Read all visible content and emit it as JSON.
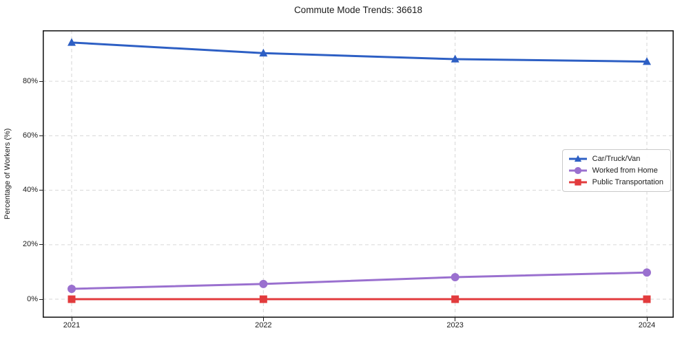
{
  "chart_data": {
    "type": "line",
    "title": "Commute Mode Trends: 36618",
    "xlabel": "",
    "ylabel": "Percentage of Workers (%)",
    "x": [
      "2021",
      "2022",
      "2023",
      "2024"
    ],
    "series": [
      {
        "name": "Car/Truck/Van",
        "color": "#2d5fc4",
        "marker": "triangle",
        "values": [
          94.2,
          90.3,
          88.1,
          87.2
        ]
      },
      {
        "name": "Worked from Home",
        "color": "#9a70cf",
        "marker": "circle",
        "values": [
          3.8,
          5.6,
          8.1,
          9.8
        ]
      },
      {
        "name": "Public Transportation",
        "color": "#e23b3d",
        "marker": "square",
        "values": [
          0.0,
          0.0,
          0.0,
          0.0
        ]
      }
    ],
    "yticks": [
      0,
      20,
      40,
      60,
      80
    ],
    "ytick_labels": [
      "0%",
      "20%",
      "40%",
      "60%",
      "80%"
    ],
    "ylim": [
      -6.8,
      98.7
    ],
    "grid": "dashed",
    "grid_color": "#d6d6d6",
    "axis_color": "#1a1a1a",
    "legend_position": "center-right",
    "line_width": 3
  }
}
